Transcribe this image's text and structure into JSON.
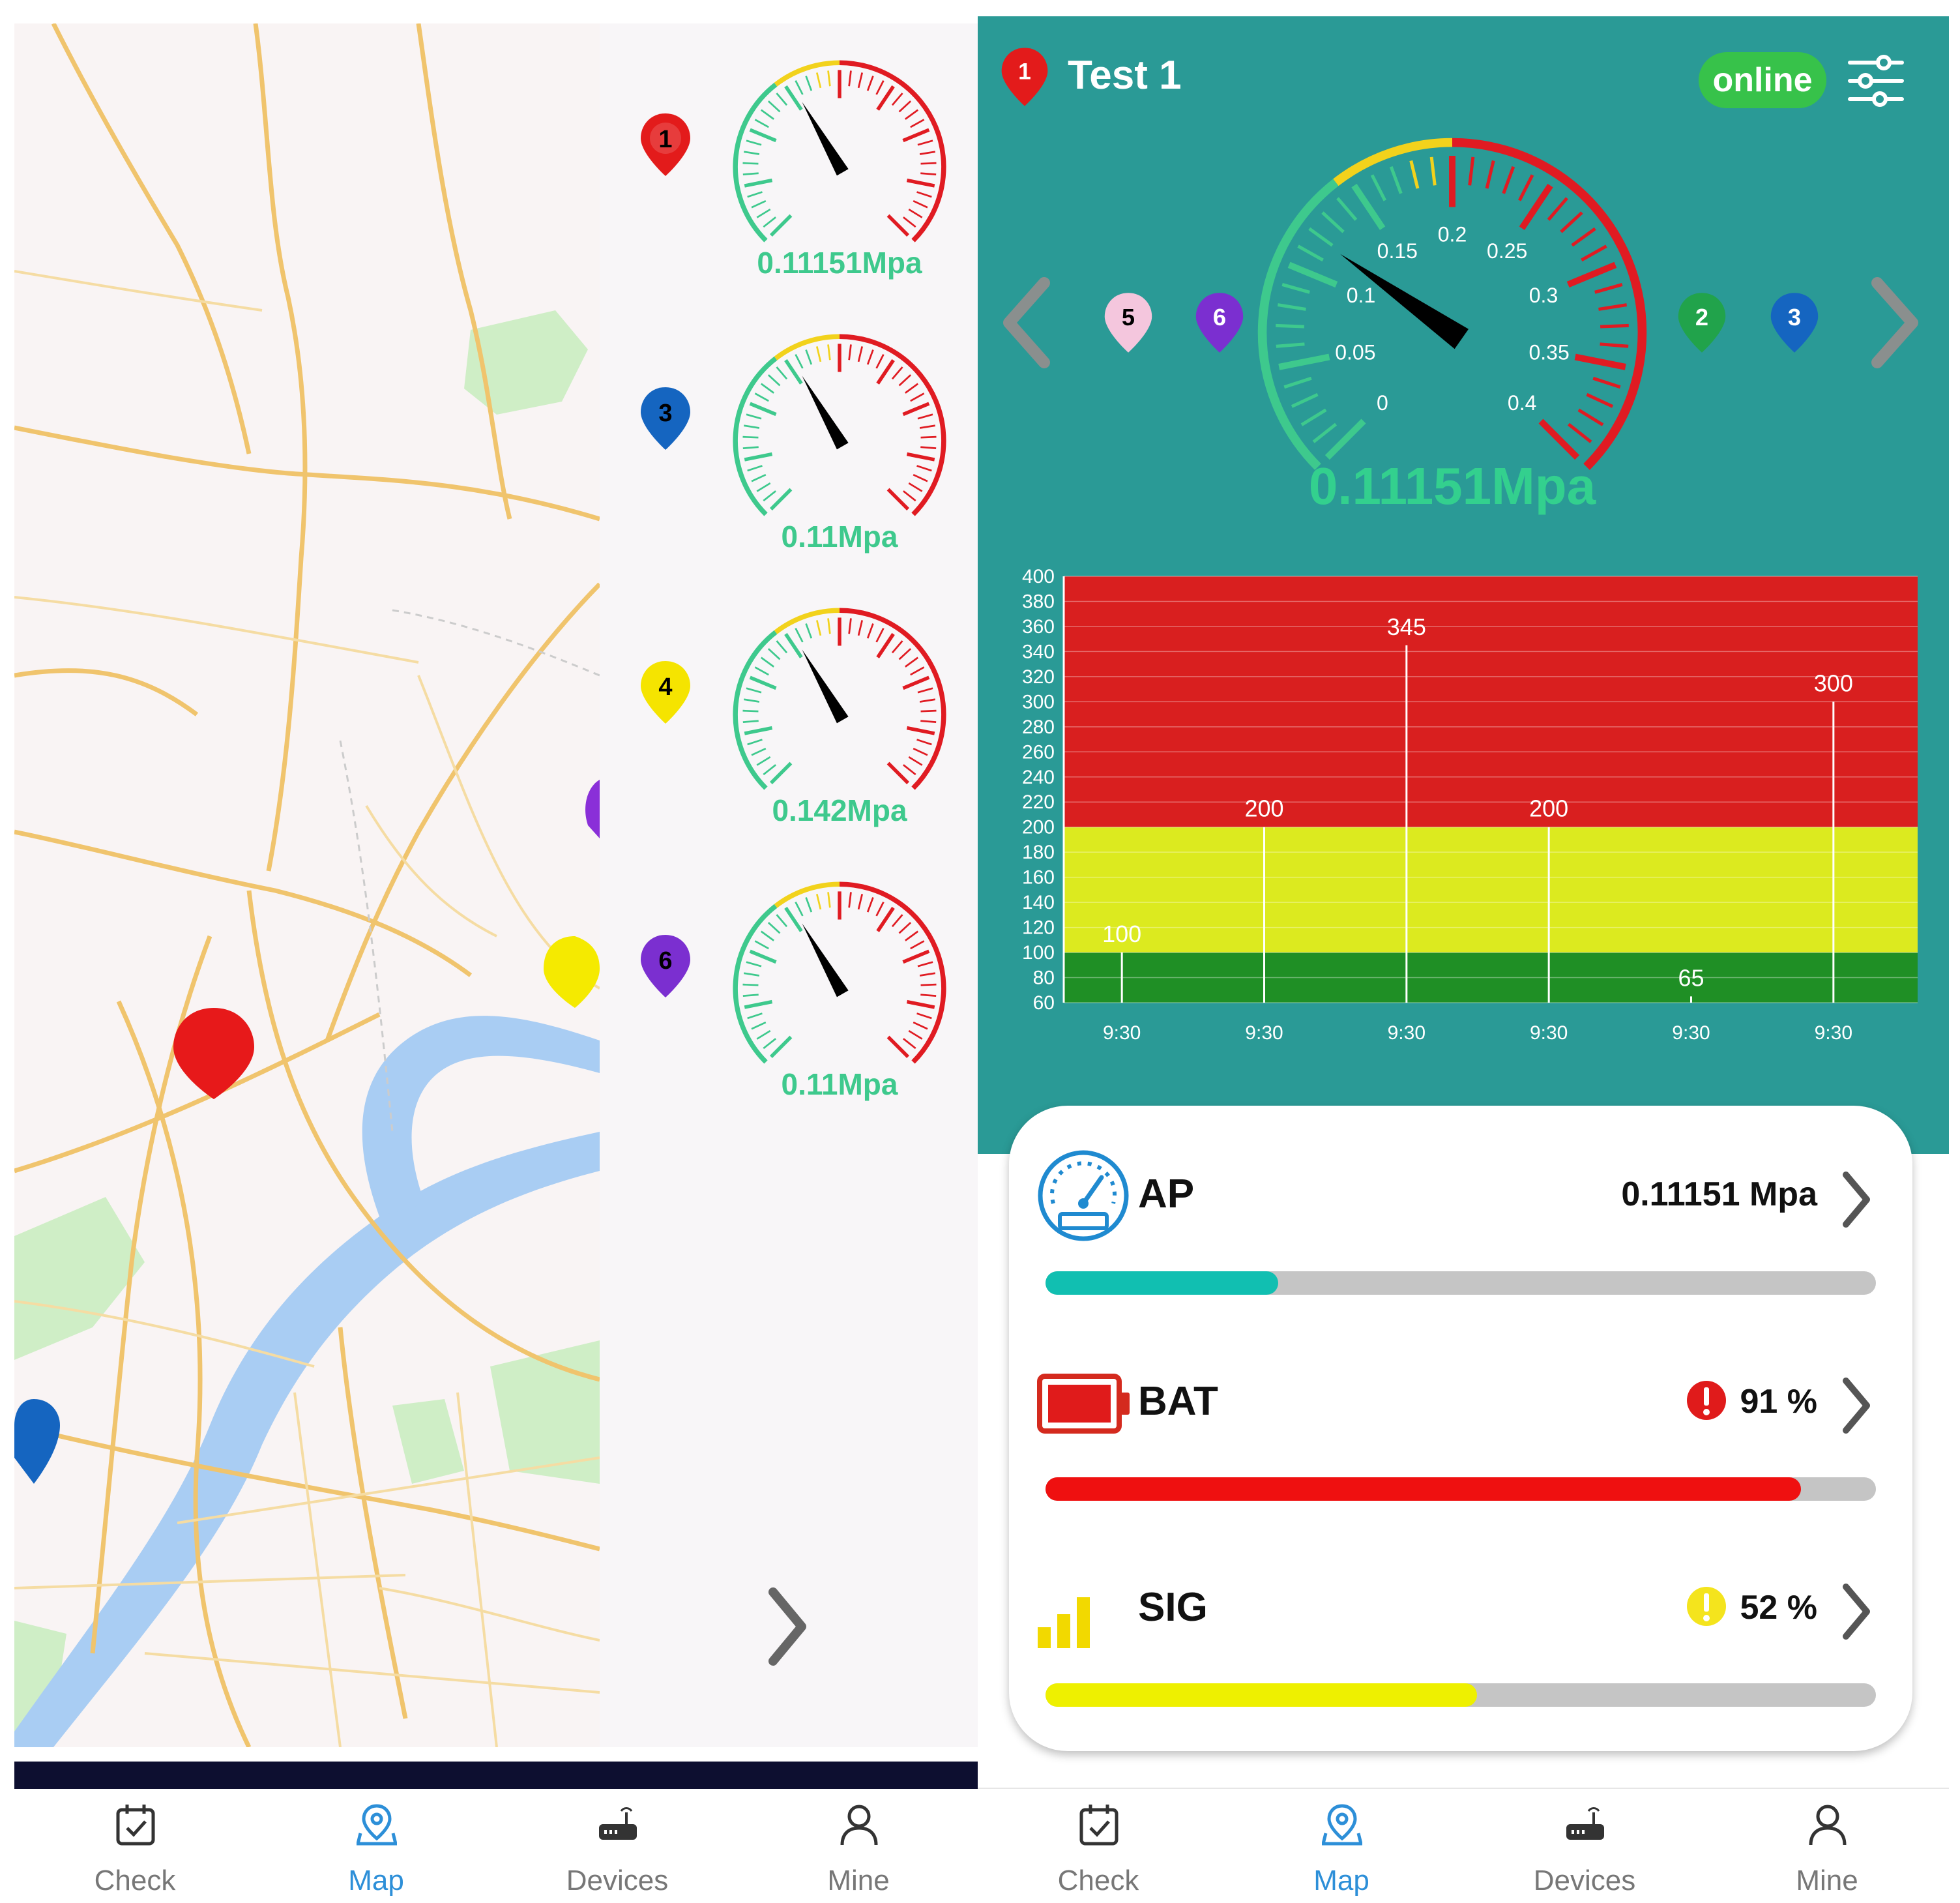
{
  "colors": {
    "teal": "#2a9a96",
    "gauge_green": "#3ec98d",
    "online_green": "#37c24a",
    "red": "#e01b22",
    "yellow": "#f2d21c",
    "nav_active": "#2d8fd8"
  },
  "left_panel": {
    "gauges": [
      {
        "pin": "1",
        "pin_color": "#e31b1b",
        "value": "0.11151Mpa",
        "needle_angle": -35
      },
      {
        "pin": "3",
        "pin_color": "#1565c0",
        "value": "0.11Mpa",
        "needle_angle": -35
      },
      {
        "pin": "4",
        "pin_color": "#f5e400",
        "value": "0.142Mpa",
        "needle_angle": -12
      },
      {
        "pin": "6",
        "pin_color": "#7b2fd0",
        "value": "0.11Mpa",
        "needle_angle": -35
      }
    ]
  },
  "nav": {
    "items": [
      {
        "label": "Check",
        "icon": "check-icon"
      },
      {
        "label": "Map",
        "icon": "map-pin-icon"
      },
      {
        "label": "Devices",
        "icon": "router-icon"
      },
      {
        "label": "Mine",
        "icon": "person-icon"
      }
    ],
    "active": "Map"
  },
  "device": {
    "pin": "1",
    "title": "Test 1",
    "status": "online",
    "value": "0.11151Mpa",
    "gauge_ticks": [
      "0",
      "0.05",
      "0.1",
      "0.15",
      "0.2",
      "0.25",
      "0.3",
      "0.35",
      "0.4"
    ],
    "pins_left": [
      {
        "num": "5",
        "color": "#f4c6dd"
      },
      {
        "num": "6",
        "color": "#7b2fd0"
      }
    ],
    "pins_right": [
      {
        "num": "2",
        "color": "#21a34b"
      },
      {
        "num": "3",
        "color": "#1565c0"
      }
    ]
  },
  "chart_data": {
    "type": "bar",
    "categories": [
      "9:30",
      "9:30",
      "9:30",
      "9:30",
      "9:30",
      "9:30"
    ],
    "values": [
      100,
      200,
      345,
      200,
      65,
      300
    ],
    "data_labels": [
      "100",
      "200",
      "345",
      "200",
      "65",
      "300"
    ],
    "ylim": [
      60,
      400
    ],
    "yticks": [
      60,
      80,
      100,
      120,
      140,
      160,
      180,
      200,
      220,
      240,
      260,
      280,
      300,
      320,
      340,
      360,
      380,
      400
    ],
    "bands": [
      {
        "from": 60,
        "to": 100,
        "color": "#1f8f25"
      },
      {
        "from": 100,
        "to": 200,
        "color": "#dcea1f"
      },
      {
        "from": 200,
        "to": 400,
        "color": "#d91f1f"
      }
    ],
    "xlabel": "",
    "ylabel": ""
  },
  "metrics": [
    {
      "name": "AP",
      "value": "0.11151 Mpa",
      "fraction": 0.28,
      "fill": "#11bfb1",
      "warn": false,
      "warn_color": ""
    },
    {
      "name": "BAT",
      "value": "91 %",
      "fraction": 0.91,
      "fill": "#ef1010",
      "warn": true,
      "warn_color": "#e01b1b"
    },
    {
      "name": "SIG",
      "value": "52 %",
      "fraction": 0.52,
      "fill": "#eef000",
      "warn": true,
      "warn_color": "#f4e41d"
    }
  ]
}
